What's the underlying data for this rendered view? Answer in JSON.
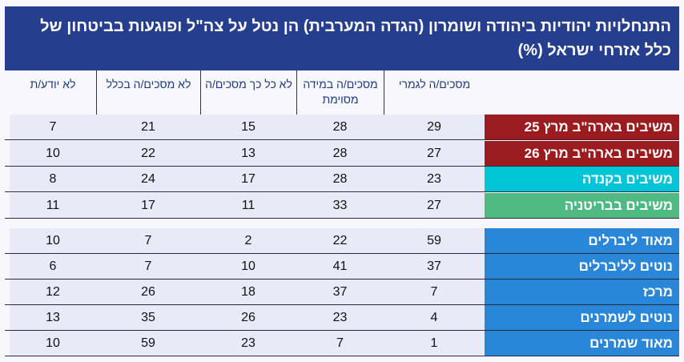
{
  "title": "התנחלויות יהודיות ביהודה ושומרון (הגדה המערבית) הן נטל על צה\"ל ופוגעות בביטחון של כלל אזרחי ישראל (%)",
  "columns": [
    "מסכים/ה לגמרי",
    "מסכים/ה במידה מסוימת",
    "לא כל כך מסכים/ה",
    "לא מסכים/ה בכלל",
    "לא יודע/ת"
  ],
  "rows": [
    {
      "label": "משיבים בארה\"ב מרץ 25",
      "color": "#9b1b1e",
      "values": [
        "29",
        "28",
        "15",
        "21",
        "7"
      ]
    },
    {
      "label": "משיבים בארה\"ב מרץ 26",
      "color": "#9b1b1e",
      "values": [
        "27",
        "28",
        "13",
        "22",
        "10"
      ]
    },
    {
      "label": "משיבים בקנדה",
      "color": "#00c5d9",
      "values": [
        "23",
        "28",
        "17",
        "24",
        "8"
      ]
    },
    {
      "label": "משיבים בבריטניה",
      "color": "#4fba84",
      "values": [
        "27",
        "33",
        "11",
        "17",
        "11"
      ]
    },
    {
      "label": "מאוד ליברלים",
      "color": "#2a86d8",
      "values": [
        "59",
        "22",
        "2",
        "7",
        "10"
      ]
    },
    {
      "label": "נוטים לליברלים",
      "color": "#2a86d8",
      "values": [
        "37",
        "41",
        "10",
        "7",
        "6"
      ]
    },
    {
      "label": "מרכז",
      "color": "#2a86d8",
      "values": [
        "7",
        "37",
        "18",
        "26",
        "12"
      ]
    },
    {
      "label": "נוטים לשמרנים",
      "color": "#2a86d8",
      "values": [
        "4",
        "23",
        "26",
        "35",
        "13"
      ]
    },
    {
      "label": "מאוד שמרנים",
      "color": "#2a86d8",
      "values": [
        "1",
        "7",
        "23",
        "59",
        "10"
      ]
    }
  ]
}
